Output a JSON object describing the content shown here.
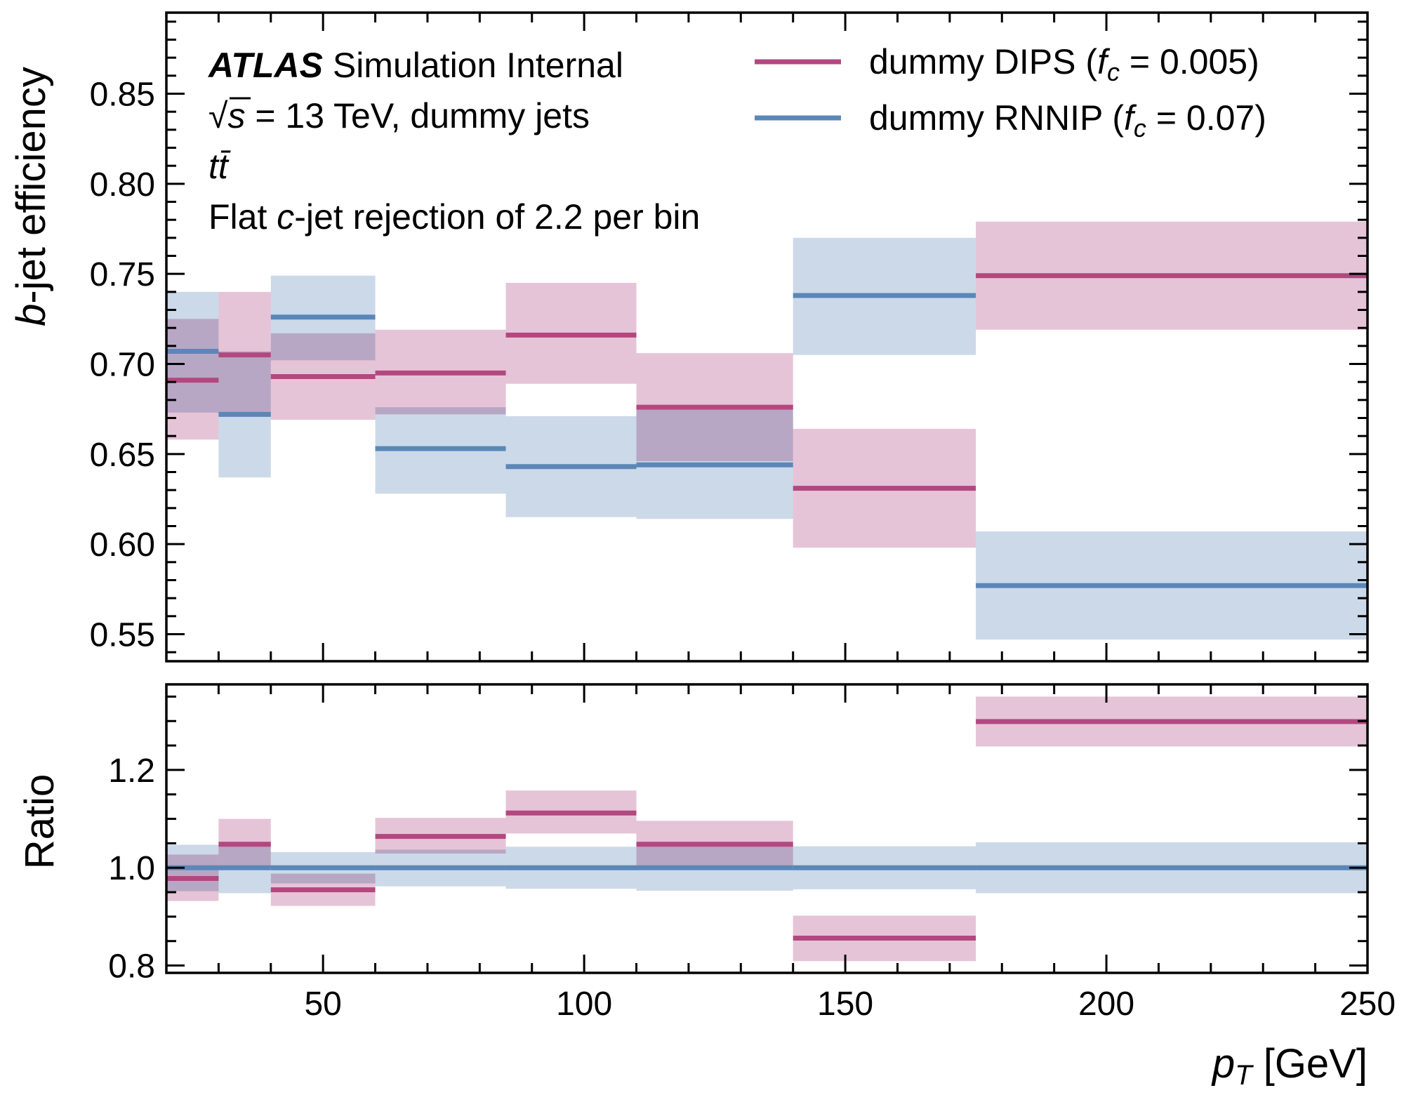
{
  "chart_data": [
    {
      "panel": "main",
      "type": "step-band",
      "xlabel": "p_T [GeV]",
      "xlabel_parts": {
        "sym": "p",
        "sub": "T",
        "unit": " [GeV]"
      },
      "ylabel": "b-jet efficiency",
      "ylabel_parts": {
        "italic": "b",
        "rest": "-jet efficiency"
      },
      "xlim": [
        20,
        250
      ],
      "ylim": [
        0.535,
        0.895
      ],
      "xticks": [
        50,
        100,
        150,
        200,
        250
      ],
      "xtick_labels": [
        "50",
        "100",
        "150",
        "200",
        "250"
      ],
      "yticks": [
        0.55,
        0.6,
        0.65,
        0.7,
        0.75,
        0.8,
        0.85
      ],
      "ytick_labels": [
        "0.55",
        "0.60",
        "0.65",
        "0.70",
        "0.75",
        "0.80",
        "0.85"
      ],
      "bin_edges": [
        20,
        30,
        40,
        60,
        85,
        110,
        140,
        175,
        250
      ],
      "series": [
        {
          "name": "dummy DIPS (f_c = 0.005)",
          "color": "#b2487f",
          "band_color": "#e3bed3",
          "values": [
            0.691,
            0.705,
            0.693,
            0.695,
            0.716,
            0.676,
            0.631,
            0.749
          ],
          "err_lo": [
            0.658,
            0.671,
            0.669,
            0.672,
            0.689,
            0.646,
            0.598,
            0.719
          ],
          "err_hi": [
            0.725,
            0.74,
            0.717,
            0.719,
            0.745,
            0.706,
            0.664,
            0.779
          ]
        },
        {
          "name": "dummy RNNIP (f_c = 0.07)",
          "color": "#5b87b8",
          "band_color": "#c6d5e5",
          "values": [
            0.707,
            0.672,
            0.726,
            0.653,
            0.643,
            0.644,
            0.738,
            0.577
          ],
          "err_lo": [
            0.673,
            0.637,
            0.702,
            0.628,
            0.615,
            0.614,
            0.705,
            0.547
          ],
          "err_hi": [
            0.74,
            0.707,
            0.749,
            0.676,
            0.671,
            0.675,
            0.77,
            0.607
          ]
        }
      ],
      "annotations": {
        "atlas": "ATLAS",
        "status": " Simulation Internal",
        "energy_prefix": "s",
        "energy_rest": " = 13 TeV, dummy jets",
        "sample": "tt̄",
        "rejection_pre": "Flat ",
        "rejection_italic": "c",
        "rejection_post": "-jet rejection of 2.2 per bin"
      },
      "legend": {
        "placement": "top-right",
        "entries": [
          {
            "pre": "dummy DIPS (",
            "sym": "f",
            "sub": "c",
            "post": " = 0.005)"
          },
          {
            "pre": "dummy RNNIP (",
            "sym": "f",
            "sub": "c",
            "post": " = 0.07)"
          }
        ]
      },
      "grid": false
    },
    {
      "panel": "ratio",
      "type": "step-band",
      "ylabel": "Ratio",
      "xlim": [
        20,
        250
      ],
      "ylim": [
        0.785,
        1.375
      ],
      "yticks": [
        0.8,
        1.0,
        1.2
      ],
      "ytick_labels": [
        "0.8",
        "1.0",
        "1.2"
      ],
      "bin_edges": [
        20,
        30,
        40,
        60,
        85,
        110,
        140,
        175,
        250
      ],
      "series": [
        {
          "name": "dummy DIPS (f_c = 0.005)",
          "color": "#b2487f",
          "band_color": "#e3bed3",
          "values": [
            0.978,
            1.048,
            0.955,
            1.064,
            1.112,
            1.048,
            0.856,
            1.299
          ],
          "err_lo": [
            0.932,
            0.998,
            0.922,
            1.029,
            1.07,
            1.003,
            0.809,
            1.248
          ],
          "err_hi": [
            1.027,
            1.1,
            0.988,
            1.102,
            1.158,
            1.096,
            0.902,
            1.35
          ]
        },
        {
          "name": "dummy RNNIP (f_c = 0.07)",
          "color": "#5b87b8",
          "band_color": "#c6d5e5",
          "values": [
            1.0,
            1.0,
            1.0,
            1.0,
            1.0,
            1.0,
            1.0,
            1.0
          ],
          "err_lo": [
            0.952,
            0.948,
            0.968,
            0.962,
            0.957,
            0.953,
            0.956,
            0.948
          ],
          "err_hi": [
            1.047,
            1.052,
            1.032,
            1.037,
            1.043,
            1.047,
            1.044,
            1.052
          ]
        }
      ],
      "grid": false
    }
  ]
}
